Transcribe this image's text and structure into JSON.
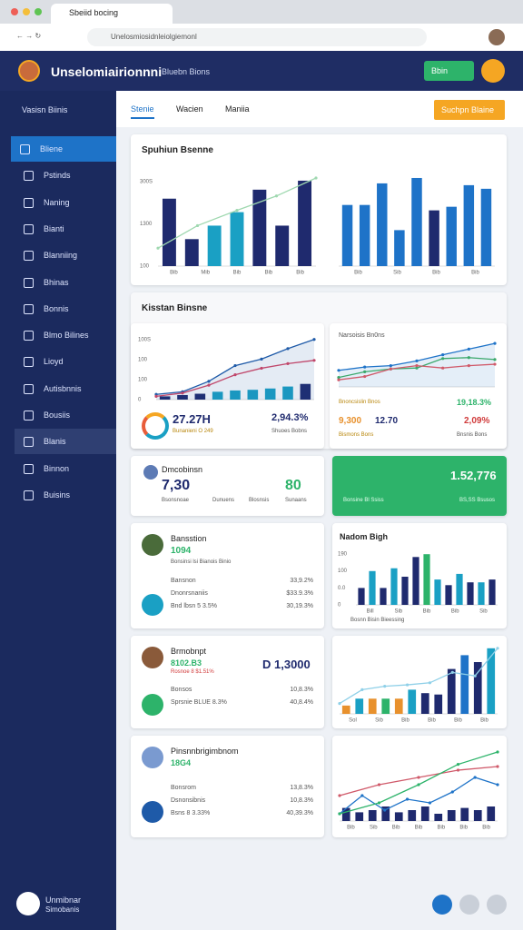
{
  "browser": {
    "tab": "Sbeiid bocing",
    "url": "Unelosmiosidnleiolgiemonl"
  },
  "header": {
    "title": "Unselomiairionnni",
    "subtitle": "Bluebn Bions",
    "button": "Bbin"
  },
  "sidebar": {
    "section": "Vasisn Biinis",
    "items": [
      "Bliene",
      "Pstinds",
      "Naning",
      "Bianti",
      "Blanniing",
      "Bhinas",
      "Bonnis",
      "Blmo Bilines",
      "Lioyd",
      "Autisbnnis",
      "Bousiis",
      "Blanis",
      "Binnon",
      "Buisins"
    ],
    "user": "Unmibnar",
    "user_sub": "Simobanis"
  },
  "tabs": [
    "Stenie",
    "Wacien",
    "Maniia"
  ],
  "action": "Suchpn Blaine",
  "cards": [
    {
      "title": "Spuhiun Bsenne",
      "charts": [
        {
          "ylim": [
            0,
            100
          ],
          "y_labels": [
            "300S",
            "1300",
            "100"
          ],
          "x_labels": [
            "Bib",
            "Mib",
            "Bib",
            "Bib",
            "Bib"
          ],
          "bars": [
            75,
            30,
            45,
            60,
            85,
            45,
            95
          ],
          "bar_colors": [
            "#1f2a6e",
            "#1f2a6e",
            "#1aa0c4",
            "#1aa0c4",
            "#1f2a6e",
            "#1f2a6e",
            "#1f2a6e"
          ],
          "lines": [
            {
              "color": "#9fd8b0",
              "values": [
                20,
                45,
                62,
                78,
                98
              ]
            }
          ]
        },
        {
          "ylim": [
            0,
            100
          ],
          "x_labels": [
            "Bib",
            "Sib",
            "Bib",
            "Bib"
          ],
          "bars": [
            68,
            68,
            92,
            40,
            98,
            62,
            66,
            90,
            86
          ],
          "bar_colors": [
            "#1e73c8",
            "#1e73c8",
            "#1e73c8",
            "#1e73c8",
            "#1e73c8",
            "#1f2a6e",
            "#1e73c8",
            "#1e73c8",
            "#1e73c8"
          ]
        }
      ]
    },
    {
      "title": "Kisstan Binsne",
      "big": "27.27H",
      "big_sub": "Bunanieni O 249",
      "value2": "2,94.3%",
      "value2_sub": "Shuoes Bobns",
      "right_title": "Narsoisis Bn0ns",
      "right_label": "Bnoncsislin Bnos",
      "right_v1": "19,18.3%",
      "right_v2": "9,300",
      "right_v3": "12.70",
      "right_v4": "2,09%",
      "right_sub": "Bismons Bons",
      "right_sub2": "Bnsnis Bons",
      "charts": [
        {
          "ylim": [
            0,
            100
          ],
          "y_labels": [
            "100S",
            "100",
            "100",
            "0"
          ],
          "bars": [
            5,
            7,
            9,
            12,
            14,
            15,
            17,
            20,
            24
          ],
          "bar_colors": [
            "#1f2a6e",
            "#1f2a6e",
            "#1f2a6e",
            "#1aa0c4",
            "#1aa0c4",
            "#1aa0c4",
            "#1aa0c4",
            "#1aa0c4",
            "#1f2a6e"
          ],
          "lines": [
            {
              "color": "#1e5aa8",
              "values": [
                8,
                12,
                28,
                52,
                62,
                78,
                92
              ],
              "area": true
            },
            {
              "color": "#c0476b",
              "values": [
                5,
                10,
                22,
                38,
                48,
                55,
                60
              ]
            }
          ]
        },
        {
          "ylim": [
            0,
            100
          ],
          "lines": [
            {
              "color": "#1e73c8",
              "values": [
                35,
                42,
                45,
                55,
                68,
                80,
                92
              ],
              "area": true
            },
            {
              "color": "#3aa86b",
              "values": [
                20,
                32,
                38,
                40,
                60,
                62,
                58
              ]
            },
            {
              "color": "#d05a6a",
              "values": [
                15,
                22,
                38,
                45,
                40,
                45,
                48
              ]
            }
          ]
        }
      ]
    },
    {
      "title": "Dmcobinsn",
      "v1": "7,30",
      "v2": "80",
      "labels": [
        "Bsonsnoae",
        "Dunuens",
        "Blosnsis",
        "Sunaans"
      ],
      "green_value": "1.52,776",
      "green_sub": "Bonsine Bl Ssiss",
      "green_sub2": "BS,SS Bsusos"
    },
    {
      "title": "Bansstion",
      "value": "1094",
      "sub": "Bonsinsi lsi Bianois Binio",
      "rows": [
        [
          "Bansnon",
          "33,9.2%"
        ],
        [
          "Dnonrsnaniis",
          "$33.9.3%"
        ],
        [
          "Bnd lbsn 5 3.5%",
          "30,19.3%"
        ]
      ],
      "right_title": "Nadom Bigh",
      "legend": "Bosnn Bisin Bieessing",
      "chart": {
        "ylim": [
          0,
          100
        ],
        "y_labels": [
          "190",
          "100",
          "0.0",
          "0"
        ],
        "x_labels": [
          "Bill",
          "Sib",
          "Bib",
          "Bib",
          "Sib"
        ],
        "bars": [
          30,
          60,
          30,
          65,
          50,
          85,
          90,
          45,
          35,
          55,
          40,
          40,
          45
        ],
        "bar_colors": [
          "#1f2a6e",
          "#1aa0c4",
          "#1f2a6e",
          "#1aa0c4",
          "#1f2a6e",
          "#1f2a6e",
          "#2db36a",
          "#1aa0c4",
          "#1f2a6e",
          "#1aa0c4",
          "#1f2a6e",
          "#1aa0c4",
          "#1f2a6e"
        ]
      }
    },
    {
      "title": "Brmobnpt",
      "value": "8102.B3",
      "sub": "Rosnoe 8 $1.51%",
      "big": "D 1,3000",
      "rows": [
        [
          "Bonsos",
          "10,8.3%"
        ],
        [
          "Sprsnie BLUE 8.3%",
          "40,8.4%"
        ]
      ],
      "chart": {
        "ylim": [
          0,
          100
        ],
        "x_labels": [
          "Sol",
          "Sib",
          "Bib",
          "Bib",
          "Bib",
          "Bib"
        ],
        "bars": [
          12,
          22,
          22,
          22,
          22,
          35,
          30,
          28,
          65,
          85,
          75,
          95
        ],
        "bar_colors": [
          "#e8912d",
          "#1aa0c4",
          "#e8912d",
          "#2db36a",
          "#e8912d",
          "#1aa0c4",
          "#1f2a6e",
          "#1f2a6e",
          "#1f2a6e",
          "#1e73c8",
          "#1f2a6e",
          "#1aa0c4"
        ],
        "lines": [
          {
            "color": "#8fd0e8",
            "values": [
              15,
              35,
              40,
              42,
              45,
              60,
              55,
              95
            ]
          }
        ]
      }
    },
    {
      "title": "Pinsnnbrigimbnom",
      "value": "18G4",
      "rows": [
        [
          "Bonsrom",
          "13,8.3%"
        ],
        [
          "Dsnonsibnis",
          "10,8.3%"
        ],
        [
          "Bsns 8 3.33%",
          "40,39.3%"
        ]
      ],
      "chart": {
        "ylim": [
          0,
          100
        ],
        "x_labels": [
          "Bib",
          "Sib",
          "Bib",
          "Bib",
          "Bib",
          "Bib",
          "Bib"
        ],
        "bars": [
          18,
          12,
          15,
          20,
          12,
          15,
          20,
          10,
          15,
          18,
          15,
          20
        ],
        "bar_colors": [
          "#1f2a6e",
          "#1f2a6e",
          "#1f2a6e",
          "#1f2a6e",
          "#1f2a6e",
          "#1f2a6e",
          "#1f2a6e",
          "#1f2a6e",
          "#1f2a6e",
          "#1f2a6e",
          "#1f2a6e",
          "#1f2a6e"
        ],
        "lines": [
          {
            "color": "#1e73c8",
            "values": [
              10,
              35,
              15,
              30,
              25,
              40,
              60,
              50
            ]
          },
          {
            "color": "#d05a6a",
            "values": [
              35,
              50,
              60,
              70,
              75
            ]
          },
          {
            "color": "#2db36a",
            "values": [
              10,
              25,
              50,
              78,
              95
            ]
          }
        ]
      }
    }
  ]
}
